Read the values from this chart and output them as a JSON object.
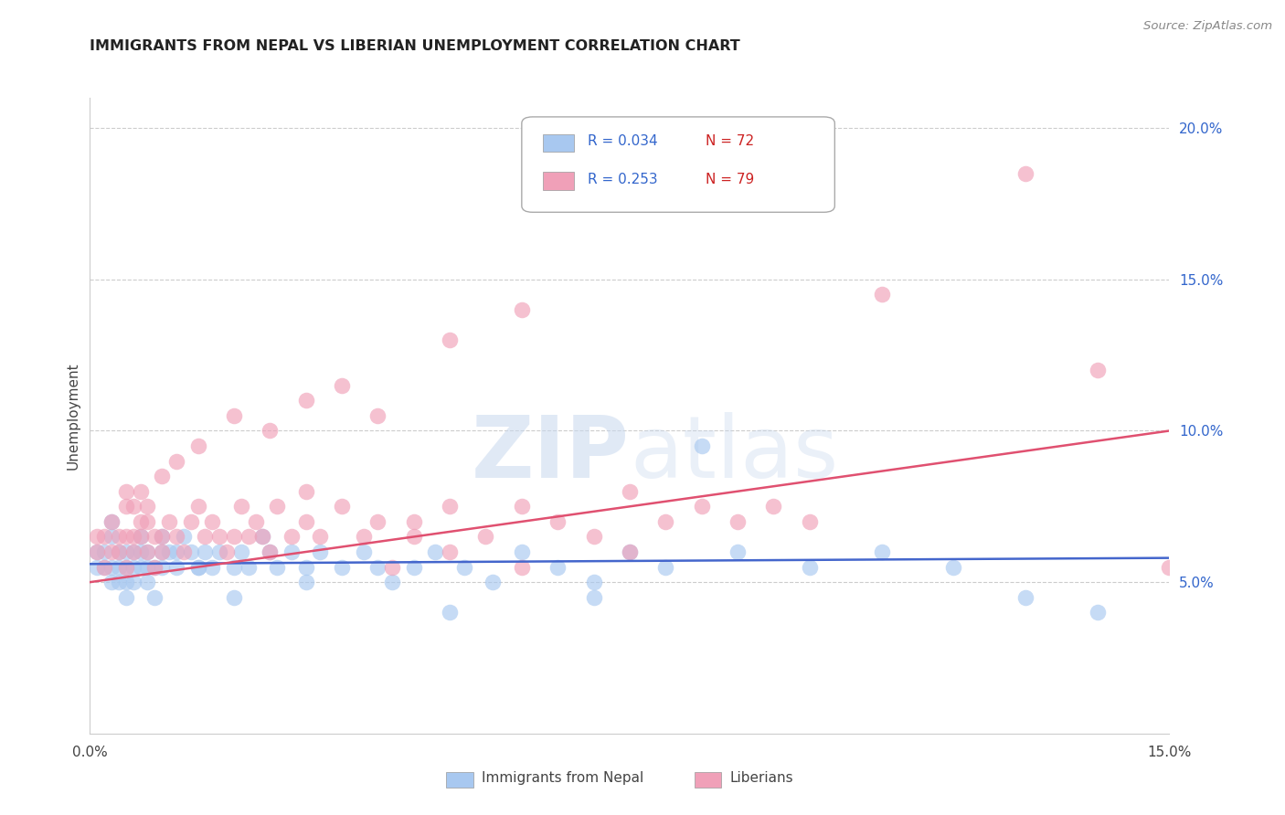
{
  "title": "IMMIGRANTS FROM NEPAL VS LIBERIAN UNEMPLOYMENT CORRELATION CHART",
  "source": "Source: ZipAtlas.com",
  "ylabel": "Unemployment",
  "xlim": [
    0.0,
    0.15
  ],
  "ylim": [
    0.0,
    0.21
  ],
  "yticks": [
    0.05,
    0.1,
    0.15,
    0.2
  ],
  "ytick_labels": [
    "5.0%",
    "10.0%",
    "15.0%",
    "20.0%"
  ],
  "xtick_positions": [
    0.0,
    0.05,
    0.1,
    0.15
  ],
  "xtick_labels": [
    "0.0%",
    "",
    "",
    "15.0%"
  ],
  "nepal_color": "#a8c8f0",
  "liberian_color": "#f0a0b8",
  "nepal_R": 0.034,
  "nepal_N": 72,
  "liberian_R": 0.253,
  "liberian_N": 79,
  "nepal_line_color": "#4466cc",
  "liberian_line_color": "#e05070",
  "nepal_line_y0": 0.056,
  "nepal_line_y1": 0.058,
  "liberian_line_y0": 0.05,
  "liberian_line_y1": 0.1,
  "watermark_color": "#d0dff0",
  "legend_box_color": "#e8f0ff",
  "grid_color": "#cccccc",
  "nepal_x": [
    0.001,
    0.001,
    0.002,
    0.002,
    0.003,
    0.003,
    0.003,
    0.004,
    0.004,
    0.005,
    0.005,
    0.005,
    0.006,
    0.006,
    0.007,
    0.007,
    0.008,
    0.008,
    0.009,
    0.01,
    0.01,
    0.011,
    0.012,
    0.013,
    0.014,
    0.015,
    0.016,
    0.017,
    0.018,
    0.02,
    0.021,
    0.022,
    0.024,
    0.026,
    0.028,
    0.03,
    0.032,
    0.035,
    0.038,
    0.04,
    0.042,
    0.045,
    0.048,
    0.052,
    0.056,
    0.06,
    0.065,
    0.07,
    0.075,
    0.08,
    0.09,
    0.1,
    0.11,
    0.12,
    0.13,
    0.003,
    0.004,
    0.005,
    0.006,
    0.007,
    0.008,
    0.009,
    0.01,
    0.012,
    0.015,
    0.02,
    0.025,
    0.03,
    0.05,
    0.07,
    0.085,
    0.14
  ],
  "nepal_y": [
    0.055,
    0.06,
    0.055,
    0.06,
    0.05,
    0.055,
    0.065,
    0.06,
    0.055,
    0.06,
    0.055,
    0.05,
    0.06,
    0.055,
    0.065,
    0.06,
    0.055,
    0.06,
    0.055,
    0.06,
    0.055,
    0.06,
    0.055,
    0.065,
    0.06,
    0.055,
    0.06,
    0.055,
    0.06,
    0.055,
    0.06,
    0.055,
    0.065,
    0.055,
    0.06,
    0.055,
    0.06,
    0.055,
    0.06,
    0.055,
    0.05,
    0.055,
    0.06,
    0.055,
    0.05,
    0.06,
    0.055,
    0.05,
    0.06,
    0.055,
    0.06,
    0.055,
    0.06,
    0.055,
    0.045,
    0.07,
    0.05,
    0.045,
    0.05,
    0.055,
    0.05,
    0.045,
    0.065,
    0.06,
    0.055,
    0.045,
    0.06,
    0.05,
    0.04,
    0.045,
    0.095,
    0.04
  ],
  "liberian_x": [
    0.001,
    0.001,
    0.002,
    0.002,
    0.003,
    0.003,
    0.004,
    0.004,
    0.005,
    0.005,
    0.005,
    0.006,
    0.006,
    0.007,
    0.007,
    0.008,
    0.008,
    0.009,
    0.009,
    0.01,
    0.01,
    0.011,
    0.012,
    0.013,
    0.014,
    0.015,
    0.016,
    0.017,
    0.018,
    0.019,
    0.02,
    0.021,
    0.022,
    0.023,
    0.024,
    0.025,
    0.026,
    0.028,
    0.03,
    0.032,
    0.035,
    0.038,
    0.04,
    0.042,
    0.045,
    0.05,
    0.055,
    0.06,
    0.065,
    0.07,
    0.075,
    0.08,
    0.085,
    0.09,
    0.095,
    0.1,
    0.005,
    0.006,
    0.007,
    0.008,
    0.01,
    0.012,
    0.015,
    0.02,
    0.025,
    0.03,
    0.035,
    0.04,
    0.05,
    0.06,
    0.03,
    0.045,
    0.06,
    0.075,
    0.05,
    0.14,
    0.13,
    0.11,
    0.15
  ],
  "liberian_y": [
    0.065,
    0.06,
    0.065,
    0.055,
    0.06,
    0.07,
    0.065,
    0.06,
    0.065,
    0.055,
    0.075,
    0.065,
    0.06,
    0.07,
    0.065,
    0.06,
    0.07,
    0.065,
    0.055,
    0.065,
    0.06,
    0.07,
    0.065,
    0.06,
    0.07,
    0.075,
    0.065,
    0.07,
    0.065,
    0.06,
    0.065,
    0.075,
    0.065,
    0.07,
    0.065,
    0.06,
    0.075,
    0.065,
    0.07,
    0.065,
    0.075,
    0.065,
    0.07,
    0.055,
    0.07,
    0.075,
    0.065,
    0.075,
    0.07,
    0.065,
    0.08,
    0.07,
    0.075,
    0.07,
    0.075,
    0.07,
    0.08,
    0.075,
    0.08,
    0.075,
    0.085,
    0.09,
    0.095,
    0.105,
    0.1,
    0.11,
    0.115,
    0.105,
    0.13,
    0.14,
    0.08,
    0.065,
    0.055,
    0.06,
    0.06,
    0.12,
    0.185,
    0.145,
    0.055
  ]
}
